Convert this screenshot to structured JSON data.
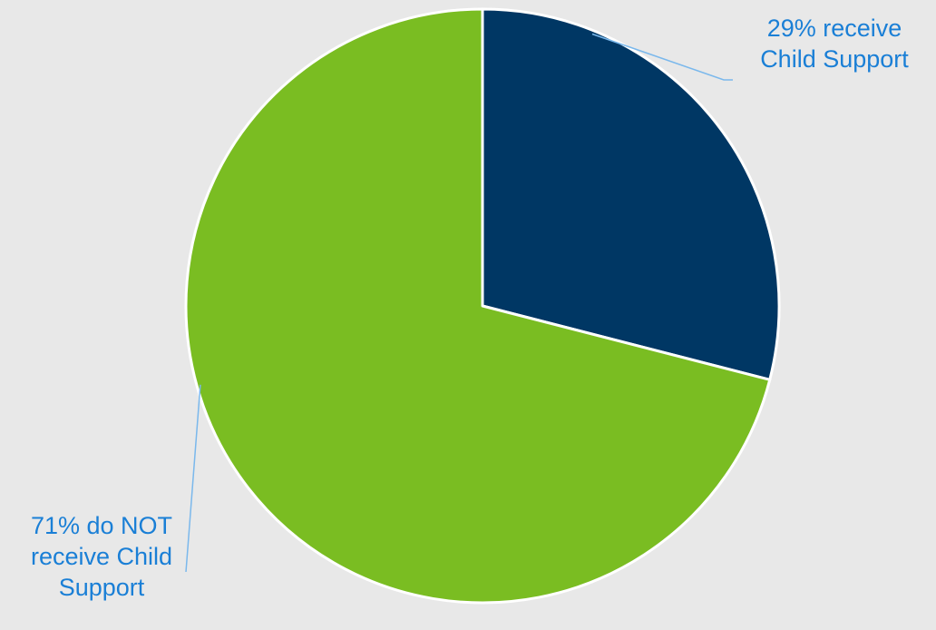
{
  "chart_data": {
    "type": "pie",
    "title": "",
    "start_angle_deg": 0,
    "direction": "clockwise",
    "slices": [
      {
        "value": 29,
        "label_lines": [
          "29% receive",
          "Child Support"
        ],
        "color": "#003764"
      },
      {
        "value": 71,
        "label_lines": [
          "71% do NOT",
          "receive Child",
          "Support"
        ],
        "color": "#7abd22"
      }
    ],
    "leader_line_color": "#7ab8ec",
    "slice_border_color": "#ffffff",
    "legend": "none"
  }
}
